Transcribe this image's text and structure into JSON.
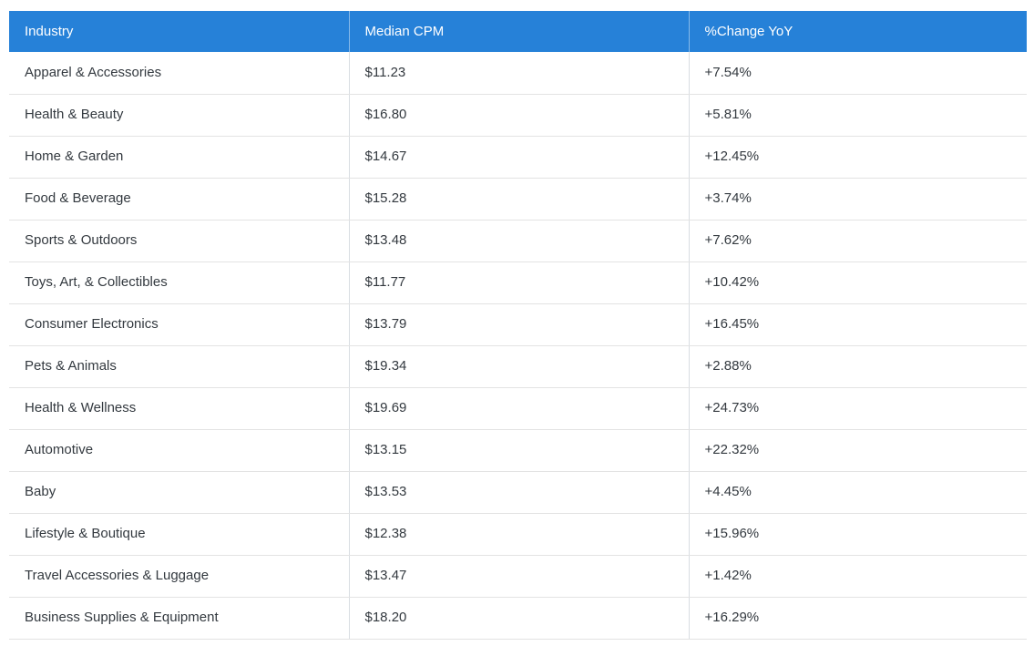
{
  "table": {
    "columns": [
      {
        "label": "Industry"
      },
      {
        "label": "Median CPM"
      },
      {
        "label": "%Change YoY"
      }
    ],
    "rows": [
      {
        "industry": "Apparel & Accessories",
        "median_cpm": "$11.23",
        "change_yoy": "+7.54%"
      },
      {
        "industry": "Health & Beauty",
        "median_cpm": "$16.80",
        "change_yoy": "+5.81%"
      },
      {
        "industry": "Home & Garden",
        "median_cpm": "$14.67",
        "change_yoy": "+12.45%"
      },
      {
        "industry": "Food & Beverage",
        "median_cpm": "$15.28",
        "change_yoy": "+3.74%"
      },
      {
        "industry": "Sports & Outdoors",
        "median_cpm": "$13.48",
        "change_yoy": "+7.62%"
      },
      {
        "industry": "Toys, Art, & Collectibles",
        "median_cpm": "$11.77",
        "change_yoy": "+10.42%"
      },
      {
        "industry": "Consumer Electronics",
        "median_cpm": "$13.79",
        "change_yoy": "+16.45%"
      },
      {
        "industry": "Pets & Animals",
        "median_cpm": "$19.34",
        "change_yoy": "+2.88%"
      },
      {
        "industry": "Health & Wellness",
        "median_cpm": "$19.69",
        "change_yoy": "+24.73%"
      },
      {
        "industry": "Automotive",
        "median_cpm": "$13.15",
        "change_yoy": "+22.32%"
      },
      {
        "industry": "Baby",
        "median_cpm": "$13.53",
        "change_yoy": "+4.45%"
      },
      {
        "industry": "Lifestyle & Boutique",
        "median_cpm": "$12.38",
        "change_yoy": "+15.96%"
      },
      {
        "industry": "Travel Accessories & Luggage",
        "median_cpm": "$13.47",
        "change_yoy": "+1.42%"
      },
      {
        "industry": "Business Supplies & Equipment",
        "median_cpm": "$18.20",
        "change_yoy": "+16.29%"
      }
    ],
    "colors": {
      "header_bg": "#2681d8",
      "header_text": "#ffffff",
      "body_text": "#33393f",
      "row_border": "#e3e3e3",
      "col_border": "#d9dde2"
    }
  },
  "chart_data": {
    "type": "table",
    "title": "",
    "columns": [
      "Industry",
      "Median CPM",
      "%Change YoY"
    ],
    "rows": [
      [
        "Apparel & Accessories",
        11.23,
        7.54
      ],
      [
        "Health & Beauty",
        16.8,
        5.81
      ],
      [
        "Home & Garden",
        14.67,
        12.45
      ],
      [
        "Food & Beverage",
        15.28,
        3.74
      ],
      [
        "Sports & Outdoors",
        13.48,
        7.62
      ],
      [
        "Toys, Art, & Collectibles",
        11.77,
        10.42
      ],
      [
        "Consumer Electronics",
        13.79,
        16.45
      ],
      [
        "Pets & Animals",
        19.34,
        2.88
      ],
      [
        "Health & Wellness",
        19.69,
        24.73
      ],
      [
        "Automotive",
        13.15,
        22.32
      ],
      [
        "Baby",
        13.53,
        4.45
      ],
      [
        "Lifestyle & Boutique",
        12.38,
        15.96
      ],
      [
        "Travel Accessories & Luggage",
        13.47,
        1.42
      ],
      [
        "Business Supplies & Equipment",
        18.2,
        16.29
      ]
    ],
    "units": {
      "Median CPM": "USD",
      "%Change YoY": "percent"
    }
  }
}
